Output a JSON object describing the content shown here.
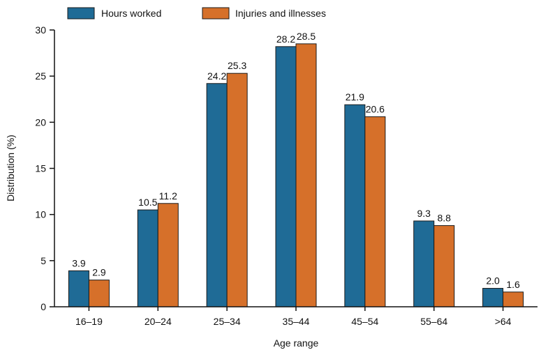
{
  "chart_data": {
    "type": "bar",
    "categories": [
      "16–19",
      "20–24",
      "25–34",
      "35–44",
      "45–54",
      "55–64",
      ">64"
    ],
    "series": [
      {
        "name": "Hours worked",
        "color": "#1f6b96",
        "values": [
          3.9,
          10.5,
          24.2,
          28.2,
          21.9,
          9.3,
          2.0
        ],
        "labels": [
          "3.9",
          "10.5",
          "24.2",
          "28.2",
          "21.9",
          "9.3",
          "2.0"
        ]
      },
      {
        "name": "Injuries and illnesses",
        "color": "#d6702a",
        "values": [
          2.9,
          11.2,
          25.3,
          28.5,
          20.6,
          8.8,
          1.6
        ],
        "labels": [
          "2.9",
          "11.2",
          "25.3",
          "28.5",
          "20.6",
          "8.8",
          "1.6"
        ]
      }
    ],
    "xlabel": "Age range",
    "ylabel": "Distribution (%)",
    "ylim": [
      0,
      30
    ],
    "yticks": [
      "0",
      "5",
      "10",
      "15",
      "20",
      "25",
      "30"
    ],
    "grid": false,
    "legend": "top-left"
  }
}
